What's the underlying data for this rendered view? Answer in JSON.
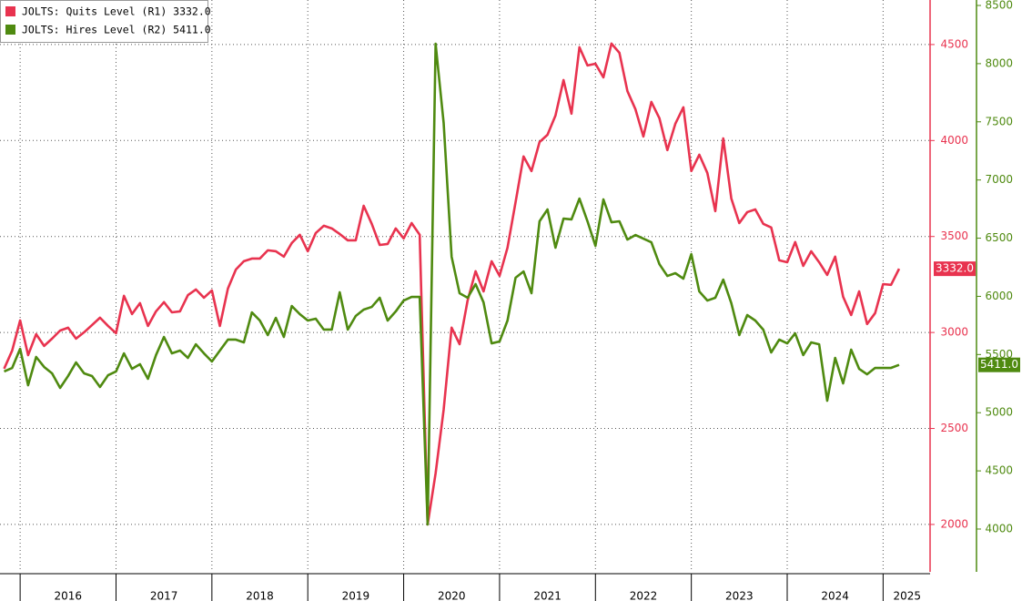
{
  "chart_data": {
    "type": "line",
    "x": [
      2015.833,
      2015.917,
      2016.0,
      2016.083,
      2016.167,
      2016.25,
      2016.333,
      2016.417,
      2016.5,
      2016.583,
      2016.667,
      2016.75,
      2016.833,
      2016.917,
      2017.0,
      2017.083,
      2017.167,
      2017.25,
      2017.333,
      2017.417,
      2017.5,
      2017.583,
      2017.667,
      2017.75,
      2017.833,
      2017.917,
      2018.0,
      2018.083,
      2018.167,
      2018.25,
      2018.333,
      2018.417,
      2018.5,
      2018.583,
      2018.667,
      2018.75,
      2018.833,
      2018.917,
      2019.0,
      2019.083,
      2019.167,
      2019.25,
      2019.333,
      2019.417,
      2019.5,
      2019.583,
      2019.667,
      2019.75,
      2019.833,
      2019.917,
      2020.0,
      2020.083,
      2020.167,
      2020.25,
      2020.333,
      2020.417,
      2020.5,
      2020.583,
      2020.667,
      2020.75,
      2020.833,
      2020.917,
      2021.0,
      2021.083,
      2021.167,
      2021.25,
      2021.333,
      2021.417,
      2021.5,
      2021.583,
      2021.667,
      2021.75,
      2021.833,
      2021.917,
      2022.0,
      2022.083,
      2022.167,
      2022.25,
      2022.333,
      2022.417,
      2022.5,
      2022.583,
      2022.667,
      2022.75,
      2022.833,
      2022.917,
      2023.0,
      2023.083,
      2023.167,
      2023.25,
      2023.333,
      2023.417,
      2023.5,
      2023.583,
      2023.667,
      2023.75,
      2023.833,
      2023.917,
      2024.0,
      2024.083,
      2024.167,
      2024.25,
      2024.333,
      2024.417,
      2024.5,
      2024.583,
      2024.667,
      2024.75,
      2024.833,
      2024.917,
      2025.0,
      2025.083,
      2025.167
    ],
    "series": [
      {
        "name": "JOLTS: Quits Level (R1) 3332.0",
        "color": "#e8334f",
        "axis": "y",
        "end_label": "3332.0",
        "values": [
          2811,
          2906,
          3063,
          2882,
          2991,
          2930,
          2968,
          3010,
          3025,
          2968,
          3001,
          3039,
          3077,
          3034,
          2996,
          3191,
          3096,
          3153,
          3034,
          3110,
          3158,
          3105,
          3110,
          3195,
          3224,
          3181,
          3219,
          3034,
          3229,
          3328,
          3371,
          3385,
          3385,
          3428,
          3423,
          3395,
          3466,
          3509,
          3423,
          3518,
          3556,
          3542,
          3513,
          3480,
          3480,
          3660,
          3566,
          3456,
          3461,
          3542,
          3490,
          3570,
          3509,
          2000,
          2266,
          2598,
          3025,
          2939,
          3167,
          3319,
          3214,
          3371,
          3295,
          3442,
          3679,
          3917,
          3841,
          3992,
          4030,
          4130,
          4315,
          4140,
          4486,
          4391,
          4400,
          4329,
          4505,
          4457,
          4258,
          4163,
          4021,
          4201,
          4116,
          3950,
          4087,
          4173,
          3841,
          3926,
          3831,
          3632,
          4011,
          3698,
          3570,
          3627,
          3641,
          3566,
          3547,
          3376,
          3366,
          3471,
          3347,
          3423,
          3366,
          3300,
          3395,
          3186,
          3091,
          3214,
          3044,
          3101,
          3252,
          3248,
          3332
        ]
      },
      {
        "name": "JOLTS: Hires Level (R2) 5411.0",
        "color": "#4f8a10",
        "axis": "y2",
        "end_label": "5411.0",
        "values": [
          5354,
          5385,
          5549,
          5236,
          5479,
          5393,
          5338,
          5213,
          5315,
          5432,
          5338,
          5315,
          5221,
          5322,
          5354,
          5510,
          5377,
          5416,
          5291,
          5495,
          5651,
          5510,
          5534,
          5471,
          5588,
          5510,
          5440,
          5534,
          5628,
          5628,
          5604,
          5862,
          5792,
          5667,
          5815,
          5651,
          5917,
          5847,
          5792,
          5808,
          5714,
          5714,
          6035,
          5714,
          5831,
          5886,
          5909,
          5988,
          5792,
          5870,
          5964,
          5995,
          5995,
          4039,
          8171,
          7490,
          6340,
          6027,
          5988,
          6105,
          5948,
          5596,
          5612,
          5792,
          6160,
          6214,
          6027,
          6645,
          6747,
          6418,
          6668,
          6661,
          6840,
          6645,
          6434,
          6833,
          6637,
          6645,
          6488,
          6527,
          6496,
          6465,
          6277,
          6175,
          6199,
          6152,
          6363,
          6042,
          5964,
          5988,
          6144,
          5941,
          5667,
          5839,
          5792,
          5714,
          5518,
          5628,
          5596,
          5682,
          5495,
          5604,
          5588,
          5103,
          5471,
          5252,
          5542,
          5377,
          5330,
          5385,
          5385,
          5385,
          5411
        ]
      }
    ],
    "xlim": [
      2015.79,
      2025.49
    ],
    "xticks": [
      {
        "value": 2016.5,
        "label": "2016"
      },
      {
        "value": 2017.5,
        "label": "2017"
      },
      {
        "value": 2018.5,
        "label": "2018"
      },
      {
        "value": 2019.5,
        "label": "2019"
      },
      {
        "value": 2020.5,
        "label": "2020"
      },
      {
        "value": 2021.5,
        "label": "2021"
      },
      {
        "value": 2022.5,
        "label": "2022"
      },
      {
        "value": 2023.5,
        "label": "2023"
      },
      {
        "value": 2024.5,
        "label": "2024"
      },
      {
        "value": 2025.25,
        "label": "2025"
      }
    ],
    "ylim": [
      1753,
      4732
    ],
    "yticks": [
      2000,
      2500,
      3000,
      3500,
      4000,
      4500
    ],
    "y2lim": [
      3632,
      8547
    ],
    "y2ticks": [
      4000,
      4500,
      5000,
      5500,
      6000,
      6500,
      7000,
      7500,
      8000,
      8500
    ],
    "grid": true,
    "legend": "top-left"
  }
}
